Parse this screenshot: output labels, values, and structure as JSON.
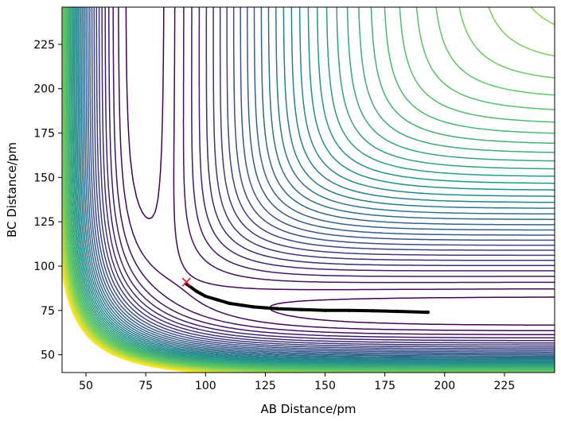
{
  "chart_data": {
    "type": "contour",
    "title": "",
    "xlabel": "AB Distance/pm",
    "ylabel": "BC Distance/pm",
    "xlim": [
      40,
      246
    ],
    "ylim": [
      40,
      246
    ],
    "xticks": [
      50,
      75,
      100,
      125,
      150,
      175,
      200,
      225
    ],
    "yticks": [
      50,
      75,
      100,
      125,
      150,
      175,
      200,
      225
    ],
    "grid": false,
    "colormap": [
      "#440154",
      "#3b528b",
      "#21918c",
      "#5ec962",
      "#fde725"
    ],
    "contour_levels": 40,
    "trajectory": {
      "color": "#000000",
      "points": [
        [
          92,
          90
        ],
        [
          96,
          86
        ],
        [
          100,
          83
        ],
        [
          105,
          81
        ],
        [
          110,
          79
        ],
        [
          115,
          78
        ],
        [
          120,
          77
        ],
        [
          125,
          76.5
        ],
        [
          130,
          76
        ],
        [
          140,
          75.5
        ],
        [
          150,
          75
        ],
        [
          160,
          75
        ],
        [
          170,
          74.8
        ],
        [
          180,
          74.5
        ],
        [
          193,
          74
        ]
      ]
    },
    "start_marker": {
      "x": 92,
      "y": 91,
      "color": "#d62728",
      "symbol": "x"
    }
  }
}
